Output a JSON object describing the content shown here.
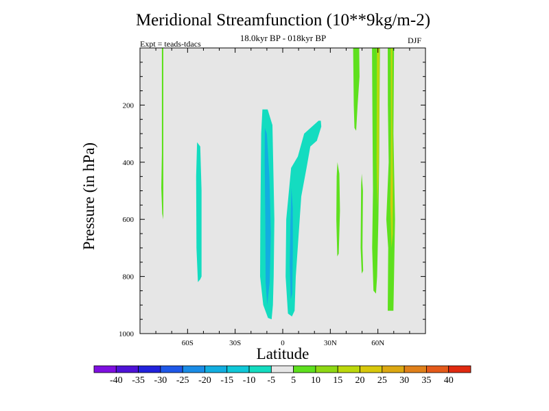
{
  "header": {
    "title": "Meridional Streamfunction (10**9kg/m-2)",
    "subtitle": "18.0kyr BP - 018kyr BP",
    "left_label": "Expt = teads-tdacs",
    "right_label": "DJF"
  },
  "chart_data": {
    "type": "contour",
    "title": "Meridional Streamfunction (10**9kg/m-2)",
    "xlabel": "Latitude",
    "ylabel": "Pressure (in hPa)",
    "xlim": [
      -90,
      90
    ],
    "ylim": [
      0,
      1000
    ],
    "y_inverted": true,
    "x_ticks": [
      {
        "value": -60,
        "label": "60S"
      },
      {
        "value": -30,
        "label": "30S"
      },
      {
        "value": 0,
        "label": "0"
      },
      {
        "value": 30,
        "label": "30N"
      },
      {
        "value": 60,
        "label": "60N"
      }
    ],
    "y_ticks": [
      {
        "value": 200,
        "label": "200"
      },
      {
        "value": 400,
        "label": "400"
      },
      {
        "value": 600,
        "label": "600"
      },
      {
        "value": 800,
        "label": "800"
      },
      {
        "value": 1000,
        "label": "1000"
      }
    ],
    "background_color": "#e6e6e6",
    "colorbar": {
      "levels": [
        -40,
        -35,
        -30,
        -25,
        -20,
        -15,
        -10,
        -5,
        5,
        10,
        15,
        20,
        25,
        30,
        35,
        40
      ],
      "labels": [
        "-40",
        "-35",
        "-30",
        "-25",
        "-20",
        "-15",
        "-10",
        "-5",
        "5",
        "10",
        "15",
        "20",
        "25",
        "30",
        "35",
        "40"
      ],
      "colors": [
        "#7e0fe0",
        "#4e12d6",
        "#2222dc",
        "#1f58e8",
        "#1a8ce6",
        "#12aee0",
        "#10c8d8",
        "#14dcc0",
        "#e6e6e6",
        "#5ee01e",
        "#8ed814",
        "#bcd80c",
        "#d8c80c",
        "#dca812",
        "#e0801a",
        "#e45a1a",
        "#e02a10"
      ]
    },
    "regions": [
      {
        "name": "sh-polar-positive",
        "level": "5 to 10",
        "color": "#5ee01e",
        "points": [
          [
            -76.2,
            0
          ],
          [
            -75.3,
            0
          ],
          [
            -75.3,
            600
          ],
          [
            -76.0,
            580
          ],
          [
            -76.6,
            490
          ],
          [
            -76.2,
            370
          ]
        ]
      },
      {
        "name": "sh-midlat-negative",
        "level": "-10 to -5",
        "color": "#14dcc0",
        "points": [
          [
            -54,
            330
          ],
          [
            -52,
            345
          ],
          [
            -51.2,
            500
          ],
          [
            -51.2,
            800
          ],
          [
            -52,
            810
          ],
          [
            -53.5,
            820
          ],
          [
            -54.4,
            700
          ],
          [
            -54.6,
            450
          ]
        ]
      },
      {
        "name": "tropical-cell-outer",
        "level": "-10 to -5",
        "color": "#14dcc0",
        "points": [
          [
            -12.8,
            215
          ],
          [
            -9.5,
            215
          ],
          [
            -6.5,
            270
          ],
          [
            -5.3,
            600
          ],
          [
            -5.7,
            800
          ],
          [
            -6.2,
            900
          ],
          [
            -7,
            950
          ],
          [
            -9.3,
            945
          ],
          [
            -12.3,
            900
          ],
          [
            -14.3,
            800
          ],
          [
            -14.1,
            600
          ],
          [
            -13.6,
            300
          ]
        ]
      },
      {
        "name": "tropical-cell-core",
        "level": "-15 to -10",
        "color": "#12aee0",
        "points": [
          [
            -11.3,
            280
          ],
          [
            -10,
            300
          ],
          [
            -8.4,
            450
          ],
          [
            -7.5,
            650
          ],
          [
            -8.2,
            820
          ],
          [
            -9.8,
            900
          ],
          [
            -10.8,
            820
          ],
          [
            -11,
            600
          ],
          [
            -11.4,
            400
          ]
        ]
      },
      {
        "name": "nh-tropical-negative",
        "level": "-10 to -5",
        "color": "#14dcc0",
        "points": [
          [
            22.6,
            255
          ],
          [
            24,
            255
          ],
          [
            24.3,
            275
          ],
          [
            21.5,
            325
          ],
          [
            17.4,
            345
          ],
          [
            15,
            420
          ],
          [
            11.7,
            520
          ],
          [
            8.2,
            800
          ],
          [
            7.5,
            920
          ],
          [
            5.8,
            940
          ],
          [
            3.3,
            930
          ],
          [
            1.8,
            800
          ],
          [
            2.2,
            600
          ],
          [
            5.3,
            420
          ],
          [
            9.5,
            380
          ],
          [
            13.5,
            300
          ],
          [
            19.5,
            270
          ]
        ]
      },
      {
        "name": "nh-tropical-core",
        "level": "-15 to -10",
        "color": "#12aee0",
        "points": [
          [
            5.5,
            490
          ],
          [
            4.8,
            620
          ],
          [
            4.4,
            760
          ],
          [
            5,
            880
          ],
          [
            6,
            860
          ],
          [
            6.4,
            700
          ],
          [
            6.3,
            560
          ]
        ]
      },
      {
        "name": "nh-subtropical-positive",
        "level": "5 to 10",
        "color": "#5ee01e",
        "points": [
          [
            34.5,
            400
          ],
          [
            35.7,
            440
          ],
          [
            36.1,
            570
          ],
          [
            35.3,
            720
          ],
          [
            34.4,
            730
          ],
          [
            33.8,
            600
          ],
          [
            34,
            450
          ]
        ]
      },
      {
        "name": "nh-midlat-thin-positive",
        "level": "5 to 10",
        "color": "#5ee01e",
        "points": [
          [
            49.8,
            440
          ],
          [
            50.6,
            500
          ],
          [
            50.3,
            700
          ],
          [
            50.7,
            780
          ],
          [
            49.8,
            790
          ],
          [
            49.1,
            700
          ],
          [
            49.4,
            480
          ]
        ]
      },
      {
        "name": "nh-upper-positive",
        "level": "5 to 10",
        "color": "#5ee01e",
        "points": [
          [
            44.4,
            0
          ],
          [
            48.2,
            0
          ],
          [
            48.4,
            100
          ],
          [
            47.2,
            200
          ],
          [
            46.3,
            290
          ],
          [
            45.2,
            280
          ],
          [
            44.8,
            200
          ]
        ]
      },
      {
        "name": "nh-column-a",
        "level": "5 to 10",
        "color": "#5ee01e",
        "points": [
          [
            56.3,
            0
          ],
          [
            61.3,
            0
          ],
          [
            61,
            200
          ],
          [
            60.8,
            400
          ],
          [
            60.3,
            600
          ],
          [
            59.5,
            800
          ],
          [
            58.8,
            860
          ],
          [
            57.2,
            850
          ],
          [
            56.4,
            700
          ],
          [
            56.9,
            500
          ],
          [
            56.5,
            200
          ]
        ]
      },
      {
        "name": "nh-column-a-core",
        "level": "15 to 20",
        "color": "#bcd80c",
        "points": [
          [
            59.4,
            0
          ],
          [
            61,
            0
          ],
          [
            60.8,
            250
          ],
          [
            60.4,
            450
          ],
          [
            59.7,
            560
          ],
          [
            59.2,
            400
          ]
        ]
      },
      {
        "name": "nh-column-b",
        "level": "5 to 10",
        "color": "#5ee01e",
        "points": [
          [
            66.2,
            0
          ],
          [
            70.2,
            0
          ],
          [
            69.8,
            300
          ],
          [
            70.8,
            600
          ],
          [
            70.2,
            800
          ],
          [
            69.8,
            920
          ],
          [
            66.2,
            920
          ],
          [
            66.5,
            700
          ],
          [
            65.3,
            600
          ],
          [
            66.8,
            400
          ],
          [
            66.3,
            200
          ]
        ]
      },
      {
        "name": "nh-column-b-core",
        "level": "15 to 20",
        "color": "#bcd80c",
        "points": [
          [
            68.1,
            0
          ],
          [
            69.2,
            0
          ],
          [
            69.1,
            250
          ],
          [
            69.5,
            450
          ],
          [
            69.4,
            650
          ],
          [
            68.6,
            700
          ],
          [
            67.9,
            550
          ],
          [
            68.3,
            300
          ]
        ]
      },
      {
        "name": "nh-column-b-peak",
        "level": "20 to 25",
        "color": "#d8c80c",
        "points": [
          [
            68.5,
            440
          ],
          [
            69.2,
            470
          ],
          [
            69.1,
            560
          ],
          [
            68.6,
            600
          ],
          [
            68.1,
            540
          ]
        ]
      }
    ]
  }
}
